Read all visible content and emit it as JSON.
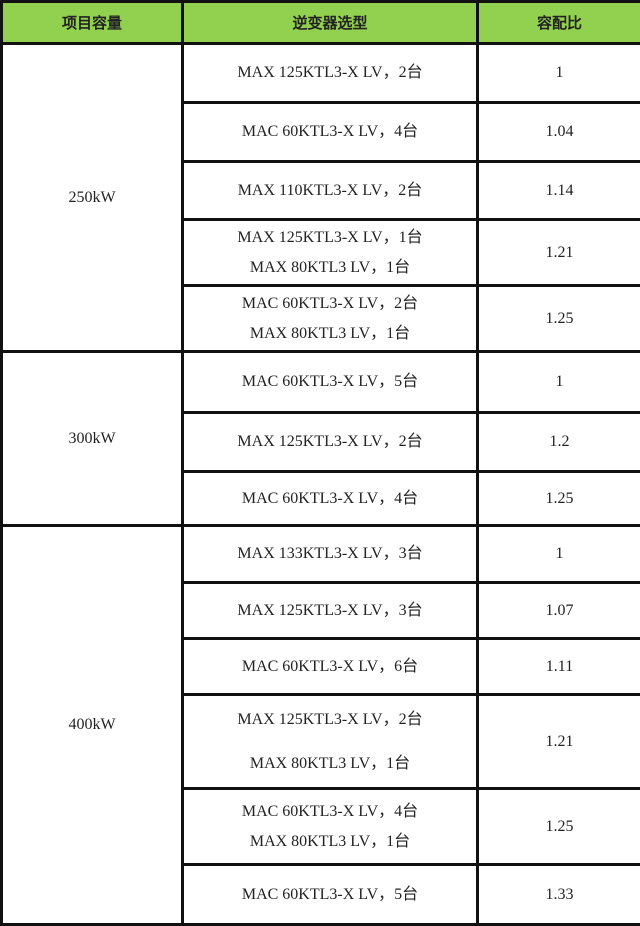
{
  "header_color": "#92d050",
  "headers": [
    "项目容量",
    "逆变器选型",
    "容配比"
  ],
  "groups": [
    {
      "capacity": "250kW",
      "rows": [
        {
          "models": [
            "MAX 125KTL3-X LV，2台"
          ],
          "ratio": "1"
        },
        {
          "models": [
            "MAC 60KTL3-X LV，4台"
          ],
          "ratio": "1.04"
        },
        {
          "models": [
            "MAX 110KTL3-X LV，2台"
          ],
          "ratio": "1.14"
        },
        {
          "models": [
            "MAX 125KTL3-X LV，1台",
            "MAX 80KTL3 LV，1台"
          ],
          "ratio": "1.21"
        },
        {
          "models": [
            "MAC 60KTL3-X LV，2台",
            "MAX 80KTL3 LV，1台"
          ],
          "ratio": "1.25"
        }
      ]
    },
    {
      "capacity": "300kW",
      "rows": [
        {
          "models": [
            "MAC 60KTL3-X LV，5台"
          ],
          "ratio": "1"
        },
        {
          "models": [
            "MAX 125KTL3-X LV，2台"
          ],
          "ratio": "1.2"
        },
        {
          "models": [
            "MAC 60KTL3-X LV，4台"
          ],
          "ratio": "1.25"
        }
      ]
    },
    {
      "capacity": "400kW",
      "rows": [
        {
          "models": [
            "MAX 133KTL3-X LV，3台"
          ],
          "ratio": "1"
        },
        {
          "models": [
            "MAX 125KTL3-X LV，3台"
          ],
          "ratio": "1.07"
        },
        {
          "models": [
            "MAC 60KTL3-X LV，6台"
          ],
          "ratio": "1.11"
        },
        {
          "models": [
            "MAX 125KTL3-X LV，2台",
            "MAX 80KTL3 LV，1台"
          ],
          "ratio": "1.21"
        },
        {
          "models": [
            "MAC 60KTL3-X LV，4台",
            "MAX 80KTL3 LV，1台"
          ],
          "ratio": "1.25"
        },
        {
          "models": [
            "MAC 60KTL3-X LV，5台"
          ],
          "ratio": "1.33"
        }
      ]
    }
  ]
}
